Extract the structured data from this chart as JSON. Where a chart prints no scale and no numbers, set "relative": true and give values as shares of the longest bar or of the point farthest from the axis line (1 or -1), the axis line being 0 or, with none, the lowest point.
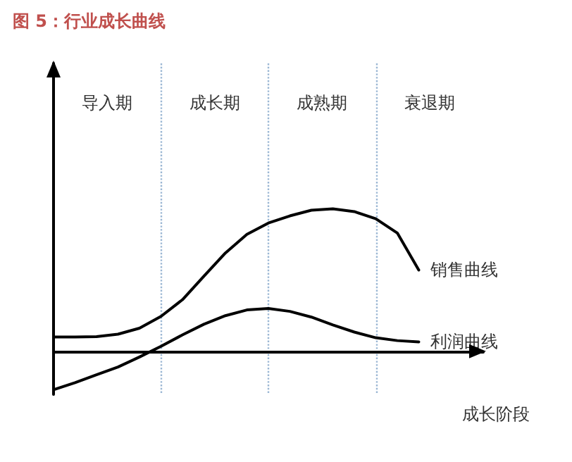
{
  "chart_data": {
    "type": "line",
    "title": "图 5：行业成长曲线",
    "xlabel": "成长阶段",
    "relative": true,
    "grid": "x",
    "marker": "none",
    "line_style": "solid",
    "categories": [
      null,
      null,
      null,
      null,
      null,
      null,
      null,
      null,
      null,
      null,
      null,
      null,
      null,
      null,
      null,
      null,
      null,
      null,
      null,
      null,
      null
    ],
    "series": [
      {
        "name": "销售曲线",
        "color": "#000000",
        "values": [
          0.1,
          0.1,
          0.103,
          0.12,
          0.162,
          0.245,
          0.362,
          0.527,
          0.69,
          0.82,
          0.9,
          0.95,
          0.99,
          1,
          0.98,
          0.93,
          0.83,
          0.57,
          null,
          null,
          null
        ]
      },
      {
        "name": "利润曲线",
        "color": "#000000",
        "values": [
          -0.27,
          -0.22,
          -0.165,
          -0.11,
          -0.04,
          0.035,
          0.115,
          0.19,
          0.25,
          0.29,
          0.3,
          0.28,
          0.24,
          0.185,
          0.135,
          0.095,
          0.075,
          0.066,
          null,
          null,
          null
        ]
      }
    ],
    "annotations": [
      "导入期",
      "成长期",
      "成熟期",
      "衰退期"
    ]
  }
}
